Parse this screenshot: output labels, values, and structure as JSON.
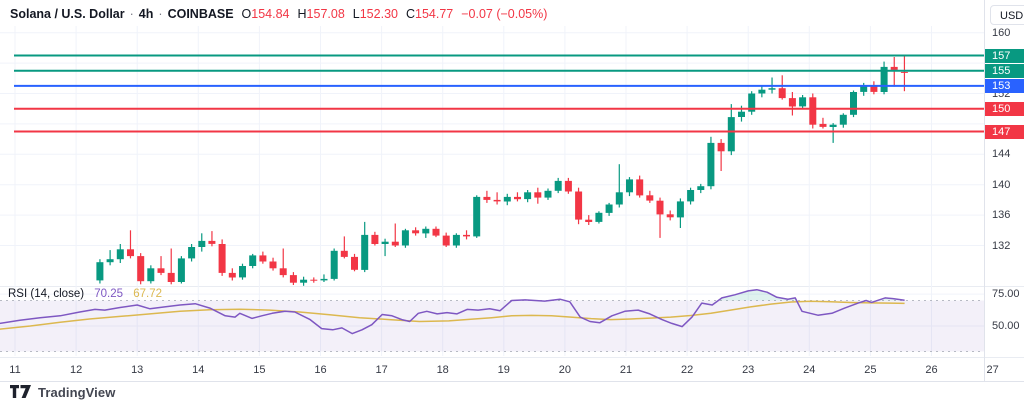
{
  "header": {
    "title": "Solana / U.S. Dollar",
    "separator": "·",
    "interval": "4h",
    "exchange": "COINBASE",
    "ohlc": {
      "open_label": "O",
      "open": "154.84",
      "high_label": "H",
      "high": "157.08",
      "low_label": "L",
      "low": "152.30",
      "close_label": "C",
      "close": "154.77",
      "change": "−0.07 (−0.05%)"
    }
  },
  "axis": {
    "unit_label": "USD",
    "price_ticks": [
      {
        "label": "160",
        "price": 160
      },
      {
        "label": "152",
        "price": 152
      },
      {
        "label": "144",
        "price": 144
      },
      {
        "label": "140",
        "price": 140
      },
      {
        "label": "136",
        "price": 136
      },
      {
        "label": "132",
        "price": 132
      }
    ],
    "rsi_ticks": [
      {
        "label": "75.00",
        "value": 75
      },
      {
        "label": "50.00",
        "value": 50
      }
    ],
    "time_ticks": [
      {
        "label": "11",
        "day": 11
      },
      {
        "label": "12",
        "day": 12
      },
      {
        "label": "13",
        "day": 13
      },
      {
        "label": "14",
        "day": 14
      },
      {
        "label": "15",
        "day": 15
      },
      {
        "label": "16",
        "day": 16
      },
      {
        "label": "17",
        "day": 17
      },
      {
        "label": "18",
        "day": 18
      },
      {
        "label": "19",
        "day": 19
      },
      {
        "label": "20",
        "day": 20
      },
      {
        "label": "21",
        "day": 21
      },
      {
        "label": "22",
        "day": 22
      },
      {
        "label": "23",
        "day": 23
      },
      {
        "label": "24",
        "day": 24
      },
      {
        "label": "25",
        "day": 25
      },
      {
        "label": "26",
        "day": 26
      },
      {
        "label": "27",
        "day": 27
      }
    ]
  },
  "rsi_pane": {
    "title": "RSI (14, close)",
    "value": "70.25",
    "ma_value": "67.72"
  },
  "watermark": {
    "logo": "tradingview-logo",
    "text": "TradingView"
  },
  "colors": {
    "up": "#089981",
    "down": "#f23645",
    "level_green": "#089981",
    "level_blue": "#2962ff",
    "level_red": "#f23645",
    "rsi_line": "#7e57c2",
    "rsi_ma_line": "#dcb84f",
    "rsi_band_fill": "rgba(126,87,194,0.09)",
    "rsi_band_edge": "#b7bac4",
    "overbought_fill": "rgba(8,153,129,0.13)",
    "grid": "#f0f3fa",
    "axis_text": "#363a45",
    "negative": "#f23645"
  },
  "chart_data": {
    "type": "candlestick",
    "symbol": "Solana / U.S. Dollar",
    "exchange": "COINBASE",
    "interval": "4h",
    "current_bar": {
      "open": 154.84,
      "high": 157.08,
      "low": 152.3,
      "close": 154.77,
      "change": -0.07,
      "change_pct": "-0.05%"
    },
    "x_axis": {
      "unit": "day of month",
      "visible_range": [
        10.7,
        27.2
      ],
      "ticks": [
        11,
        12,
        13,
        14,
        15,
        16,
        17,
        18,
        19,
        20,
        21,
        22,
        23,
        24,
        25,
        26,
        27
      ]
    },
    "y_axis": {
      "unit": "USD",
      "visible_range": [
        126,
        161
      ],
      "ticks": [
        160,
        152,
        144,
        140,
        136,
        132
      ]
    },
    "levels": [
      {
        "price": 157,
        "label": "157",
        "color": "#089981",
        "kind": "resistance"
      },
      {
        "price": 155,
        "label": "155",
        "color": "#089981",
        "kind": "resistance"
      },
      {
        "price": 153,
        "label": "153",
        "color": "#2962ff",
        "kind": "pivot"
      },
      {
        "price": 150,
        "label": "150",
        "color": "#f23645",
        "kind": "support"
      },
      {
        "price": 147,
        "label": "147",
        "color": "#f23645",
        "kind": "support"
      }
    ],
    "candles": {
      "t_start_day": 12.39,
      "t_step_days": 0.16667,
      "columns": [
        "open",
        "high",
        "low",
        "close"
      ],
      "ohlc": [
        [
          127.4,
          130.2,
          127.0,
          129.8
        ],
        [
          129.8,
          131.4,
          129.4,
          130.2
        ],
        [
          130.2,
          132.2,
          129.7,
          131.5
        ],
        [
          131.5,
          134.0,
          130.3,
          130.6
        ],
        [
          130.6,
          131.0,
          126.9,
          127.3
        ],
        [
          127.3,
          129.4,
          127.0,
          129.0
        ],
        [
          129.0,
          130.6,
          128.1,
          128.4
        ],
        [
          128.4,
          131.6,
          126.9,
          127.2
        ],
        [
          127.2,
          130.6,
          127.0,
          130.3
        ],
        [
          130.3,
          132.2,
          129.9,
          131.8
        ],
        [
          131.8,
          133.6,
          131.2,
          132.6
        ],
        [
          132.6,
          133.9,
          131.9,
          132.2
        ],
        [
          132.2,
          132.8,
          128.0,
          128.4
        ],
        [
          128.4,
          129.0,
          127.4,
          127.8
        ],
        [
          127.8,
          129.6,
          127.5,
          129.3
        ],
        [
          129.3,
          130.9,
          129.0,
          130.7
        ],
        [
          130.7,
          131.2,
          129.6,
          129.9
        ],
        [
          129.9,
          130.4,
          128.7,
          129.0
        ],
        [
          129.0,
          131.6,
          127.8,
          128.1
        ],
        [
          128.1,
          128.5,
          126.8,
          127.1
        ],
        [
          127.1,
          127.9,
          126.7,
          127.5
        ],
        [
          127.5,
          127.8,
          127.1,
          127.4
        ],
        [
          127.4,
          128.2,
          127.2,
          127.6
        ],
        [
          127.6,
          131.6,
          127.4,
          131.3
        ],
        [
          131.3,
          133.2,
          130.3,
          130.5
        ],
        [
          130.5,
          130.9,
          128.6,
          128.8
        ],
        [
          128.8,
          135.1,
          128.5,
          133.4
        ],
        [
          133.4,
          133.8,
          132.0,
          132.2
        ],
        [
          132.2,
          132.9,
          130.6,
          132.5
        ],
        [
          132.5,
          134.9,
          131.8,
          132.0
        ],
        [
          132.0,
          134.2,
          131.7,
          134.0
        ],
        [
          134.0,
          134.4,
          133.3,
          133.6
        ],
        [
          133.6,
          134.5,
          133.0,
          134.2
        ],
        [
          134.2,
          134.5,
          133.1,
          133.3
        ],
        [
          133.3,
          133.7,
          131.8,
          132.0
        ],
        [
          132.0,
          133.6,
          131.7,
          133.4
        ],
        [
          133.4,
          134.0,
          132.8,
          133.2
        ],
        [
          133.2,
          138.6,
          133.0,
          138.4
        ],
        [
          138.4,
          139.2,
          137.6,
          138.0
        ],
        [
          138.0,
          139.0,
          137.4,
          137.8
        ],
        [
          137.8,
          138.8,
          137.3,
          138.4
        ],
        [
          138.4,
          139.0,
          137.8,
          138.1
        ],
        [
          138.1,
          139.3,
          137.7,
          139.0
        ],
        [
          139.0,
          139.6,
          137.5,
          138.3
        ],
        [
          138.3,
          139.5,
          138.0,
          139.2
        ],
        [
          139.2,
          140.9,
          138.9,
          140.5
        ],
        [
          140.5,
          140.9,
          138.8,
          139.1
        ],
        [
          139.1,
          139.6,
          134.8,
          135.4
        ],
        [
          135.4,
          136.0,
          134.7,
          135.1
        ],
        [
          135.1,
          136.5,
          134.9,
          136.3
        ],
        [
          136.3,
          137.6,
          135.9,
          137.4
        ],
        [
          137.4,
          142.7,
          137.0,
          139.0
        ],
        [
          139.0,
          141.0,
          138.5,
          140.7
        ],
        [
          140.7,
          141.2,
          138.3,
          138.6
        ],
        [
          138.6,
          139.2,
          137.6,
          137.9
        ],
        [
          137.9,
          138.3,
          133.0,
          136.1
        ],
        [
          136.1,
          136.6,
          135.3,
          135.7
        ],
        [
          135.7,
          138.2,
          134.3,
          137.8
        ],
        [
          137.8,
          139.6,
          137.4,
          139.3
        ],
        [
          139.3,
          140.1,
          138.9,
          139.8
        ],
        [
          139.8,
          146.3,
          139.4,
          145.5
        ],
        [
          145.5,
          146.0,
          141.8,
          144.4
        ],
        [
          144.4,
          150.6,
          143.9,
          148.9
        ],
        [
          148.9,
          150.4,
          148.3,
          149.6
        ],
        [
          149.6,
          152.3,
          149.2,
          152.0
        ],
        [
          152.0,
          153.0,
          151.5,
          152.5
        ],
        [
          152.5,
          154.1,
          152.0,
          152.7
        ],
        [
          152.7,
          154.4,
          151.2,
          151.4
        ],
        [
          151.4,
          152.2,
          149.1,
          150.3
        ],
        [
          150.3,
          151.8,
          150.0,
          151.5
        ],
        [
          151.5,
          152.0,
          147.4,
          147.9
        ],
        [
          148.0,
          148.8,
          147.4,
          147.6
        ],
        [
          147.6,
          148.1,
          145.5,
          147.9
        ],
        [
          147.9,
          149.4,
          147.5,
          149.2
        ],
        [
          149.2,
          152.4,
          148.9,
          152.2
        ],
        [
          152.2,
          153.4,
          151.7,
          153.1
        ],
        [
          153.1,
          153.6,
          151.9,
          152.2
        ],
        [
          152.2,
          156.2,
          151.9,
          155.5
        ],
        [
          155.5,
          156.8,
          152.9,
          155.1
        ],
        [
          154.84,
          157.08,
          152.3,
          154.77
        ]
      ]
    },
    "rsi_indicator": {
      "name": "RSI (14, close)",
      "length": 14,
      "source": "close",
      "last_value": 70.25,
      "ma_last_value": 67.72,
      "bands": [
        30,
        70
      ],
      "axis_ticks": [
        75,
        50
      ],
      "line": [
        [
          10.75,
          52
        ],
        [
          11.08,
          54.5
        ],
        [
          11.41,
          56.5
        ],
        [
          11.74,
          58
        ],
        [
          12.06,
          61
        ],
        [
          12.31,
          63
        ],
        [
          12.47,
          62.5
        ],
        [
          12.72,
          64.5
        ],
        [
          13.0,
          66.5
        ],
        [
          13.21,
          63.5
        ],
        [
          13.45,
          65
        ],
        [
          13.7,
          66.5
        ],
        [
          13.95,
          67.5
        ],
        [
          14.19,
          64
        ],
        [
          14.44,
          58
        ],
        [
          14.6,
          57
        ],
        [
          14.68,
          60
        ],
        [
          14.88,
          56
        ],
        [
          15.04,
          58
        ],
        [
          15.21,
          60
        ],
        [
          15.42,
          61.5
        ],
        [
          15.58,
          61
        ],
        [
          15.83,
          55
        ],
        [
          16.02,
          48
        ],
        [
          16.2,
          47
        ],
        [
          16.35,
          48.5
        ],
        [
          16.52,
          44
        ],
        [
          16.68,
          47
        ],
        [
          16.84,
          51
        ],
        [
          17.01,
          59
        ],
        [
          17.17,
          58
        ],
        [
          17.33,
          55
        ],
        [
          17.46,
          53.5
        ],
        [
          17.6,
          60
        ],
        [
          17.74,
          61.5
        ],
        [
          17.91,
          59.5
        ],
        [
          18.07,
          60.5
        ],
        [
          18.23,
          59.5
        ],
        [
          18.4,
          63
        ],
        [
          18.58,
          62.5
        ],
        [
          18.77,
          63.5
        ],
        [
          18.94,
          62
        ],
        [
          19.13,
          70
        ],
        [
          19.35,
          70.5
        ],
        [
          19.67,
          69.5
        ],
        [
          19.92,
          71
        ],
        [
          20.08,
          69
        ],
        [
          20.25,
          57
        ],
        [
          20.41,
          53.5
        ],
        [
          20.57,
          52.5
        ],
        [
          20.77,
          58
        ],
        [
          20.98,
          61.5
        ],
        [
          21.2,
          62.5
        ],
        [
          21.39,
          59.5
        ],
        [
          21.59,
          55
        ],
        [
          21.75,
          52
        ],
        [
          21.92,
          49.5
        ],
        [
          22.08,
          57
        ],
        [
          22.24,
          68
        ],
        [
          22.41,
          66.5
        ],
        [
          22.57,
          72
        ],
        [
          22.78,
          74.5
        ],
        [
          23.0,
          77.5
        ],
        [
          23.14,
          78.5
        ],
        [
          23.31,
          76.5
        ],
        [
          23.47,
          72.5
        ],
        [
          23.65,
          71
        ],
        [
          23.77,
          72
        ],
        [
          23.88,
          61.5
        ],
        [
          24.14,
          58.5
        ],
        [
          24.37,
          60
        ],
        [
          24.58,
          64
        ],
        [
          24.8,
          68
        ],
        [
          24.93,
          70
        ],
        [
          25.02,
          68.5
        ],
        [
          25.24,
          72
        ],
        [
          25.37,
          71.5
        ],
        [
          25.56,
          70.25
        ]
      ],
      "ma": [
        [
          10.75,
          47.5
        ],
        [
          11.25,
          50
        ],
        [
          11.74,
          53
        ],
        [
          12.22,
          55.5
        ],
        [
          12.72,
          57.5
        ],
        [
          13.21,
          59.5
        ],
        [
          13.7,
          61.5
        ],
        [
          14.19,
          62.8
        ],
        [
          14.68,
          63.2
        ],
        [
          15.17,
          62.5
        ],
        [
          15.66,
          61
        ],
        [
          16.15,
          58.8
        ],
        [
          16.64,
          56.5
        ],
        [
          17.13,
          55
        ],
        [
          17.62,
          53.5
        ],
        [
          18.1,
          54
        ],
        [
          18.43,
          55.2
        ],
        [
          18.8,
          56.5
        ],
        [
          19.13,
          58
        ],
        [
          19.45,
          58.3
        ],
        [
          19.78,
          58
        ],
        [
          20.1,
          57
        ],
        [
          20.43,
          55.8
        ],
        [
          20.75,
          55
        ],
        [
          21.08,
          55.5
        ],
        [
          21.4,
          56.2
        ],
        [
          21.73,
          57
        ],
        [
          22.06,
          58.2
        ],
        [
          22.39,
          60
        ],
        [
          22.71,
          62.5
        ],
        [
          23.04,
          65
        ],
        [
          23.37,
          67.2
        ],
        [
          23.7,
          68.8
        ],
        [
          24.02,
          69.4
        ],
        [
          24.35,
          69
        ],
        [
          24.67,
          68.4
        ],
        [
          25.0,
          68.1
        ],
        [
          25.33,
          68
        ],
        [
          25.56,
          67.72
        ]
      ]
    }
  }
}
